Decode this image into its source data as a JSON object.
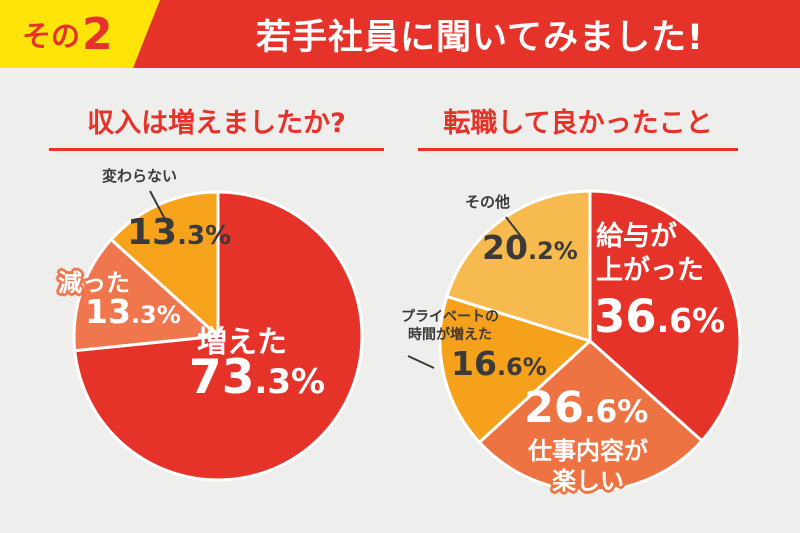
{
  "page": {
    "background": "#EEEEEC"
  },
  "header": {
    "badge_label_prefix": "その",
    "badge_label_number": "2",
    "badge_bg": "#FFE40A",
    "bar_bg": "#E6332A",
    "title": "若手社員に聞いてみました!"
  },
  "chart_data": [
    {
      "type": "pie",
      "title": "収入は増えましたか?",
      "start_angle_deg": 0,
      "direction": "clockwise",
      "slices": [
        {
          "label": "増えた",
          "value": 73.3,
          "pct_int": "73",
          "pct_frac": ".3%",
          "color": "#E6332A",
          "value_text_color": "#FFFFFF"
        },
        {
          "label": "減った",
          "value": 13.3,
          "pct_int": "13",
          "pct_frac": ".3%",
          "color": "#F0764E",
          "value_text_color": "#FFFFFF"
        },
        {
          "label": "変わらない",
          "value": 13.3,
          "pct_int": "13",
          "pct_frac": ".3%",
          "color": "#F6A21B",
          "value_text_color": "#3A3A3A"
        }
      ]
    },
    {
      "type": "pie",
      "title": "転職して良かったこと",
      "start_angle_deg": 0,
      "direction": "clockwise",
      "slices": [
        {
          "label": "給与が上がった",
          "label_lines": [
            "給与が",
            "上がった"
          ],
          "value": 36.6,
          "pct_int": "36",
          "pct_frac": ".6%",
          "color": "#E6332A",
          "value_text_color": "#FFFFFF"
        },
        {
          "label": "仕事内容が楽しい",
          "label_lines": [
            "仕事内容が",
            "楽しい"
          ],
          "value": 26.6,
          "pct_int": "26",
          "pct_frac": ".6%",
          "color": "#EE7342",
          "value_text_color": "#FFFFFF"
        },
        {
          "label": "プライベートの時間が増えた",
          "label_lines": [
            "プライベートの",
            "時間が増えた"
          ],
          "value": 16.6,
          "pct_int": "16",
          "pct_frac": ".6%",
          "color": "#F5A11B",
          "value_text_color": "#3A3A3A"
        },
        {
          "label": "その他",
          "value": 20.2,
          "pct_int": "20",
          "pct_frac": ".2%",
          "color": "#F7BA4E",
          "value_text_color": "#3A3A3A"
        }
      ]
    }
  ]
}
